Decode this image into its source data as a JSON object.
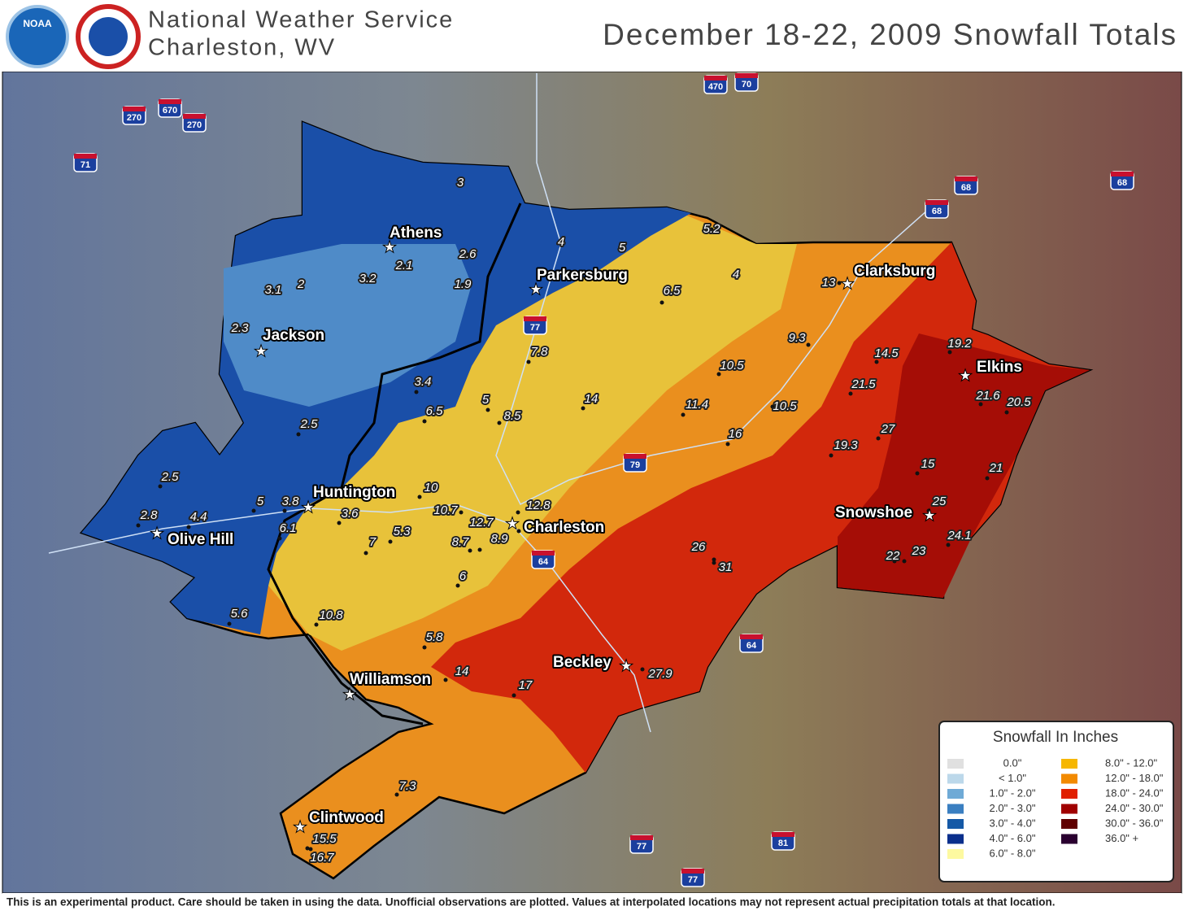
{
  "header": {
    "logo": "NOAA",
    "title_line1": "National Weather Service",
    "title_line2": "Charleston, WV",
    "title": "December 18-22, 2009 Snowfall Totals"
  },
  "cities": [
    "Athens",
    "Parkersburg",
    "Clarksburg",
    "Jackson",
    "Elkins",
    "Huntington",
    "Snowshoe",
    "Charleston",
    "Olive Hill",
    "Beckley",
    "Williamson",
    "Clintwood"
  ],
  "observations": [
    3,
    5.2,
    4,
    5,
    2.6,
    2.1,
    4,
    3.1,
    2,
    3.2,
    1.9,
    13,
    6.5,
    2.3,
    9.3,
    19.2,
    7.8,
    14.5,
    10.5,
    21.5,
    21.6,
    3.4,
    14,
    20.5,
    5,
    11.4,
    10.5,
    6.5,
    8.5,
    2.5,
    27,
    16,
    19.3,
    15,
    21,
    2.5,
    10,
    5,
    3.8,
    25,
    2.8,
    4.4,
    10.7,
    3.6,
    12.8,
    12.7,
    6.1,
    5.3,
    24.1,
    8.7,
    8.9,
    7,
    26,
    23,
    22,
    31,
    6,
    10.8,
    5.6,
    5.8,
    14,
    27.9,
    17,
    7.3,
    15.5,
    16.7
  ],
  "highways": [
    "270",
    "670",
    "270",
    "71",
    "470",
    "70",
    "68",
    "68",
    "68",
    "77",
    "79",
    "64",
    "64",
    "77",
    "81",
    "77"
  ],
  "legend": {
    "title": "Snowfall In Inches",
    "entries": [
      {
        "label": "0.0\"",
        "color": "#e0e0e0"
      },
      {
        "label": "< 1.0\"",
        "color": "#bcd8ea"
      },
      {
        "label": "1.0\" - 2.0\"",
        "color": "#6faad6"
      },
      {
        "label": "2.0\" - 3.0\"",
        "color": "#3a7fc1"
      },
      {
        "label": "3.0\" - 4.0\"",
        "color": "#1559a6"
      },
      {
        "label": "4.0\" - 6.0\"",
        "color": "#0a2f8c"
      },
      {
        "label": "6.0\" - 8.0\"",
        "color": "#fdf9a0"
      },
      {
        "label": "8.0\" - 12.0\"",
        "color": "#f6b700"
      },
      {
        "label": "12.0\" - 18.0\"",
        "color": "#f28a00"
      },
      {
        "label": "18.0\" - 24.0\"",
        "color": "#e02000"
      },
      {
        "label": "24.0\" - 30.0\"",
        "color": "#a00000"
      },
      {
        "label": "30.0\" - 36.0\"",
        "color": "#600000"
      },
      {
        "label": "36.0\" +",
        "color": "#2a0030"
      }
    ]
  },
  "footer": "This is an experimental product. Care should be taken in using the data. Unofficial observations are plotted. Values at interpolated locations may not represent actual precipitation totals at that location."
}
